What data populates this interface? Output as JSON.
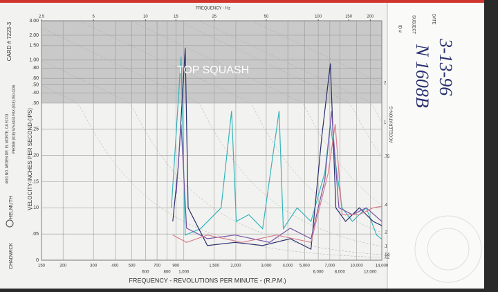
{
  "chart_data": {
    "type": "line",
    "top_axis_label": "FREQUENCY - Hz",
    "x_label": "FREQUENCY - REVOLUTIONS PER MINUTE - (R.P.M.)",
    "y_label": "VELOCITY-INCHES PER SECOND-(IPS)",
    "y2_label": "ACCELERATION-G",
    "annotation": "TOP SQUASH",
    "xscale": "log",
    "yscale": "linear-log",
    "ysplit": 0.3,
    "grid": true,
    "xlim": [
      150,
      14000
    ],
    "xticks": [
      150,
      200,
      300,
      400,
      500,
      600,
      700,
      800,
      900,
      {
        "value": 1000,
        "label": "1,000"
      },
      {
        "value": 1500,
        "label": "1,500"
      },
      {
        "value": 2000,
        "label": "2,000"
      },
      {
        "value": 3000,
        "label": "3,000"
      },
      {
        "value": 4000,
        "label": "4,000"
      },
      {
        "value": 5000,
        "label": "5,000"
      },
      {
        "value": 6000,
        "label": "6,000"
      },
      {
        "value": 7000,
        "label": "7,000"
      },
      {
        "value": 8000,
        "label": "8,000"
      },
      {
        "value": 10000,
        "label": "10,000"
      },
      {
        "value": 12000,
        "label": "12,000"
      },
      {
        "value": 14000,
        "label": "14,000"
      }
    ],
    "x2lim": [
      2.5,
      233.3
    ],
    "x2ticks": [
      2.5,
      5,
      10,
      15,
      25,
      50,
      100,
      150,
      200
    ],
    "ylim": [
      0,
      3
    ],
    "yticks": [
      0,
      {
        "value": 0.05,
        "label": ".05"
      },
      {
        "value": 0.1,
        "label": ".10"
      },
      {
        "value": 0.15,
        "label": ".15"
      },
      {
        "value": 0.2,
        "label": ".20"
      },
      {
        "value": 0.25,
        "label": ".25"
      },
      {
        "value": 0.3,
        "label": ".30"
      },
      {
        "value": 0.4,
        "label": ".40"
      },
      {
        "value": 0.5,
        "label": ".50"
      },
      {
        "value": 0.6,
        "label": ".60"
      },
      {
        "value": 0.8,
        "label": ".80"
      },
      {
        "value": 1,
        "label": "1.00"
      },
      {
        "value": 1.5,
        "label": "1.50"
      },
      {
        "value": 2,
        "label": "2.00"
      },
      {
        "value": 3,
        "label": "3.00"
      }
    ],
    "accel_ticks": [
      2,
      1,
      {
        "value": 0.75,
        "label": ".75"
      },
      {
        "value": 0.4,
        "label": ".4"
      },
      {
        "value": 0.2,
        "label": ".2"
      },
      {
        "value": 0.1,
        "label": ".1"
      },
      {
        "value": 0.04,
        "label": ".04"
      },
      {
        "value": 0.02,
        "label": ".02"
      }
    ],
    "series": [
      {
        "color": "#35b5b9",
        "x": [
          847,
          964,
          1019,
          1248,
          1645,
          1889,
          2013,
          2377,
          2858,
          3561,
          3768,
          4529,
          5446,
          6549,
          7053,
          7524,
          8249,
          9465,
          11380,
          13063,
          14000
        ],
        "values": [
          0.1,
          1.1,
          0.048,
          0.06,
          0.1,
          0.285,
          0.074,
          0.087,
          0.06,
          0.285,
          0.06,
          0.1,
          0.074,
          0.167,
          0.26,
          0.19,
          0.1,
          0.074,
          0.1,
          0.048,
          0.04
        ]
      },
      {
        "color": "#2a2d6c",
        "x": [
          863,
          929,
          1019,
          1059,
          1368,
          1978,
          2858,
          4130,
          5446,
          6279,
          7053,
          7587,
          8637,
          10381,
          12476,
          14000
        ],
        "values": [
          0.074,
          0.18,
          1.4,
          0.1,
          0.028,
          0.034,
          0.028,
          0.041,
          0.021,
          0.233,
          0.91,
          0.1,
          0.074,
          0.1,
          0.074,
          0.066
        ]
      },
      {
        "color": "#7a55a6",
        "x": [
          904,
          964,
          1038,
          1368,
          1978,
          3134,
          4130,
          5446,
          6549,
          7164,
          7894,
          9465,
          11380,
          14000
        ],
        "values": [
          0.127,
          0.26,
          0.061,
          0.041,
          0.048,
          0.034,
          0.061,
          0.041,
          0.153,
          0.285,
          0.1,
          0.087,
          0.1,
          0.074
        ]
      },
      {
        "color": "#d97f8e",
        "x": [
          863,
          1038,
          1368,
          2168,
          3438,
          5446,
          6857,
          7524,
          8249,
          10381,
          12476,
          14000
        ],
        "values": [
          0.048,
          0.034,
          0.048,
          0.034,
          0.048,
          0.034,
          0.167,
          0.26,
          0.087,
          0.087,
          0.1,
          0.103
        ]
      }
    ]
  },
  "card": {
    "card_no": "CARD # 7223-3",
    "company_a": "CHADWICK",
    "company_b": "HELMUTH",
    "address": "4601 NO. ARDEN DR. EL MONTE, CA 91731",
    "phone": "PHONE (818) 575-6161",
    "fax": "FAX (818) 350-4236",
    "id_label": "ID #",
    "subject_label": "SUBJECT",
    "date_label": "DATE",
    "date_value": "3-13-96",
    "subject_value": "N 1608B"
  }
}
